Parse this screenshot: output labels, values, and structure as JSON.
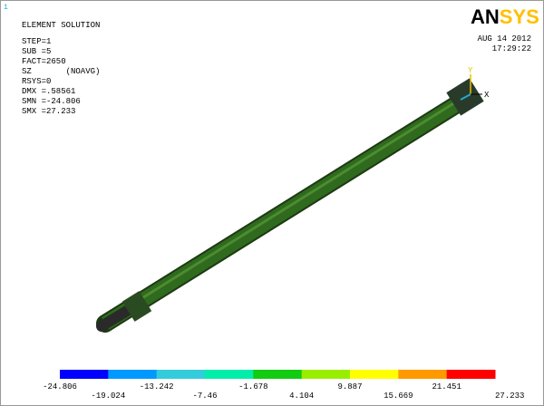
{
  "window_number": "1",
  "info": {
    "title": "ELEMENT SOLUTION",
    "lines": [
      "STEP=1",
      "SUB =5",
      "FACT=2650",
      "SZ       (NOAVG)",
      "RSYS=0",
      "DMX =.58561",
      "SMN =-24.806",
      "SMX =27.233"
    ]
  },
  "logo": {
    "part1": "AN",
    "part2": "SYS"
  },
  "date": "AUG 14 2012",
  "time": "17:29:22",
  "triad": {
    "y_label": "Y",
    "x_label": "X"
  },
  "legend": {
    "colors": [
      "#0000ff",
      "#0099ff",
      "#33ccdd",
      "#00eeaa",
      "#11cc11",
      "#99ee00",
      "#ffff00",
      "#ff9900",
      "#ff0000"
    ],
    "labels": [
      "-24.806",
      "-19.024",
      "-13.242",
      "-7.46",
      "-1.678",
      "4.104",
      "9.887",
      "15.669",
      "21.451",
      "27.233"
    ]
  }
}
